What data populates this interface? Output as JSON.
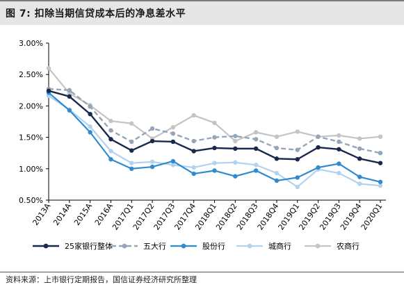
{
  "title": "图 7:  扣除当期信贷成本后的净息差水平",
  "source": "资料来源：上市银行定期报告，国信证券经济研究所整理",
  "chart_data": {
    "type": "line",
    "x": [
      "2013A",
      "2014A",
      "2015A",
      "2016A",
      "2017Q1",
      "2017Q2",
      "2017Q3",
      "2017Q4",
      "2018Q1",
      "2018Q2",
      "2018Q3",
      "2018Q4",
      "2019Q1",
      "2019Q2",
      "2019Q3",
      "2019Q4",
      "2020Q1"
    ],
    "y_ticks": [
      "3.00%",
      "2.50%",
      "2.00%",
      "1.50%",
      "1.00%",
      "0.50%"
    ],
    "ylim": [
      0.5,
      3.0
    ],
    "grid": false,
    "legend": "bottom",
    "series": [
      {
        "name": "25家银行整体",
        "color": "#17294d",
        "dash": "solid",
        "width": 2.4,
        "values": [
          2.24,
          2.15,
          1.87,
          1.47,
          1.29,
          1.44,
          1.43,
          1.28,
          1.33,
          1.32,
          1.32,
          1.16,
          1.15,
          1.34,
          1.31,
          1.16,
          1.09
        ]
      },
      {
        "name": "五大行",
        "color": "#95a6b8",
        "dash": "dashed",
        "width": 2.4,
        "values": [
          2.27,
          2.25,
          1.99,
          1.61,
          1.43,
          1.64,
          1.56,
          1.44,
          1.5,
          1.52,
          1.47,
          1.33,
          1.3,
          1.51,
          1.43,
          1.32,
          1.25
        ]
      },
      {
        "name": "股份行",
        "color": "#2f8bd0",
        "dash": "solid",
        "width": 2.2,
        "values": [
          2.21,
          1.93,
          1.58,
          1.15,
          1.0,
          1.03,
          1.12,
          0.92,
          0.97,
          0.88,
          0.97,
          0.81,
          0.86,
          1.02,
          1.08,
          0.87,
          0.79
        ]
      },
      {
        "name": "城商行",
        "color": "#b3d2ee",
        "dash": "solid",
        "width": 2.2,
        "values": [
          2.16,
          1.94,
          1.67,
          1.28,
          1.09,
          1.11,
          1.06,
          1.02,
          1.09,
          1.1,
          1.06,
          0.93,
          0.71,
          0.99,
          0.93,
          0.76,
          0.73
        ]
      },
      {
        "name": "农商行",
        "color": "#c4c4c4",
        "dash": "solid",
        "width": 2.2,
        "values": [
          2.6,
          2.2,
          2.01,
          1.76,
          1.72,
          1.48,
          1.66,
          1.85,
          1.73,
          1.44,
          1.58,
          1.51,
          1.59,
          1.51,
          1.53,
          1.48,
          1.51
        ]
      }
    ]
  }
}
